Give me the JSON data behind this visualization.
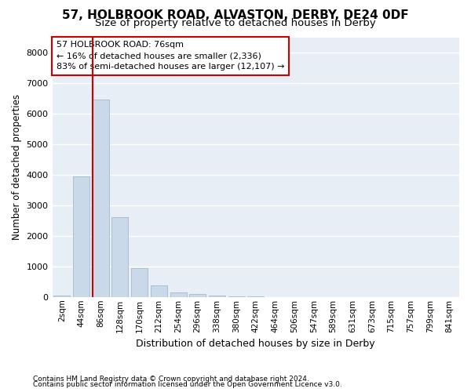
{
  "title1": "57, HOLBROOK ROAD, ALVASTON, DERBY, DE24 0DF",
  "title2": "Size of property relative to detached houses in Derby",
  "xlabel": "Distribution of detached houses by size in Derby",
  "ylabel": "Number of detached properties",
  "footer1": "Contains HM Land Registry data © Crown copyright and database right 2024.",
  "footer2": "Contains public sector information licensed under the Open Government Licence v3.0.",
  "categories": [
    "2sqm",
    "44sqm",
    "86sqm",
    "128sqm",
    "170sqm",
    "212sqm",
    "254sqm",
    "296sqm",
    "338sqm",
    "380sqm",
    "422sqm",
    "464sqm",
    "506sqm",
    "547sqm",
    "589sqm",
    "631sqm",
    "673sqm",
    "715sqm",
    "757sqm",
    "799sqm",
    "841sqm"
  ],
  "values": [
    50,
    3950,
    6450,
    2600,
    950,
    380,
    160,
    90,
    50,
    30,
    10,
    5,
    0,
    0,
    0,
    0,
    0,
    0,
    0,
    0,
    0
  ],
  "bar_color": "#c9d9ea",
  "bar_edge_color": "#aabfcf",
  "vline_color": "#cc0000",
  "annotation_line1": "57 HOLBROOK ROAD: 76sqm",
  "annotation_line2": "← 16% of detached houses are smaller (2,336)",
  "annotation_line3": "83% of semi-detached houses are larger (12,107) →",
  "annotation_box_color": "#ffffff",
  "annotation_box_edge": "#cc0000",
  "ylim": [
    0,
    8500
  ],
  "yticks": [
    0,
    1000,
    2000,
    3000,
    4000,
    5000,
    6000,
    7000,
    8000
  ],
  "bg_color": "#e8eef6",
  "grid_color": "#ffffff",
  "title1_fontsize": 11,
  "title2_fontsize": 9.5
}
